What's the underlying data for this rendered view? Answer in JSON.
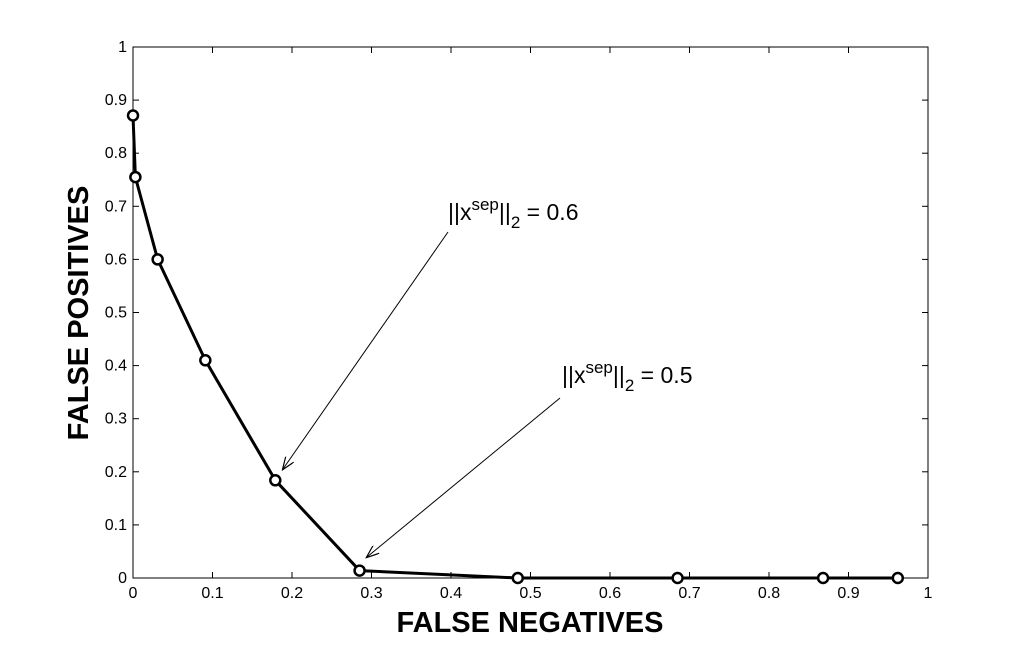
{
  "chart_data": {
    "type": "line",
    "title": "",
    "xlabel": "FALSE NEGATIVES",
    "ylabel": "FALSE POSITIVES",
    "xlim": [
      0,
      1
    ],
    "ylim": [
      0,
      1
    ],
    "x_ticks": [
      "0",
      "0.1",
      "0.2",
      "0.3",
      "0.4",
      "0.5",
      "0.6",
      "0.7",
      "0.8",
      "0.9",
      "1"
    ],
    "y_ticks": [
      "0",
      "0.1",
      "0.2",
      "0.3",
      "0.4",
      "0.5",
      "0.6",
      "0.7",
      "0.8",
      "0.9",
      "1"
    ],
    "grid": false,
    "legend": "none",
    "series": [
      {
        "x": [
          0.0,
          0.003,
          0.031,
          0.091,
          0.179,
          0.285,
          0.484,
          0.685,
          0.868,
          0.962
        ],
        "y": [
          0.871,
          0.755,
          0.6,
          0.41,
          0.184,
          0.014,
          0.0,
          0.0,
          0.0,
          0.0
        ],
        "color": "#000000",
        "marker": "open-circle"
      }
    ],
    "annotations": [
      {
        "text_main": "||x",
        "text_sup": "sep",
        "text_mid": "||",
        "text_sub": "2",
        "text_tail": " = 0.6",
        "points_to": [
          0.185,
          0.2
        ]
      },
      {
        "text_main": "||x",
        "text_sup": "sep",
        "text_mid": "||",
        "text_sub": "2",
        "text_tail": " = 0.5",
        "points_to": [
          0.29,
          0.035
        ]
      }
    ]
  }
}
